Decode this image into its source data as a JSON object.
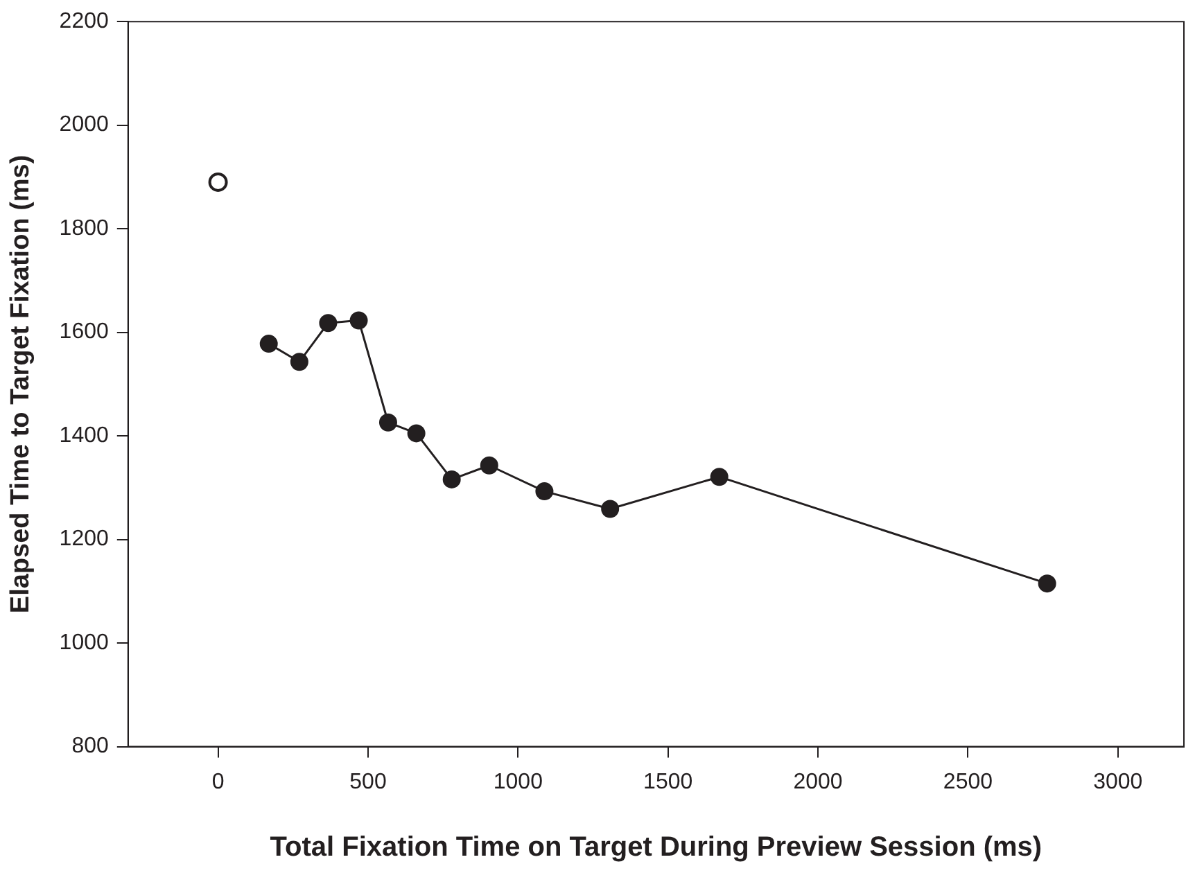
{
  "chart_data": {
    "type": "line",
    "xlabel": "Total Fixation Time on Target During Preview Session (ms)",
    "ylabel": "Elapsed Time to Target Fixation (ms)",
    "series": [
      {
        "type": "scatter",
        "color": "#231f20",
        "x": [
          0
        ],
        "values": [
          1890
        ]
      },
      {
        "type": "line",
        "color": "#231f20",
        "x": [
          169,
          271,
          367,
          469,
          567,
          661,
          779,
          904,
          1088,
          1307,
          1671,
          2764
        ],
        "values": [
          1578,
          1543,
          1618,
          1623,
          1426,
          1405,
          1316,
          1343,
          1293,
          1259,
          1321,
          1115
        ]
      }
    ],
    "xlim": [
      -300,
      3220
    ],
    "xticks": [
      0,
      500,
      1000,
      1500,
      2000,
      2500,
      3000
    ],
    "ylim": [
      800,
      2200
    ],
    "yticks": [
      800,
      1000,
      1200,
      1400,
      1600,
      1800,
      2000,
      2200
    ],
    "grid": false,
    "legend": false,
    "marker": "circle",
    "line_style": "solid"
  }
}
